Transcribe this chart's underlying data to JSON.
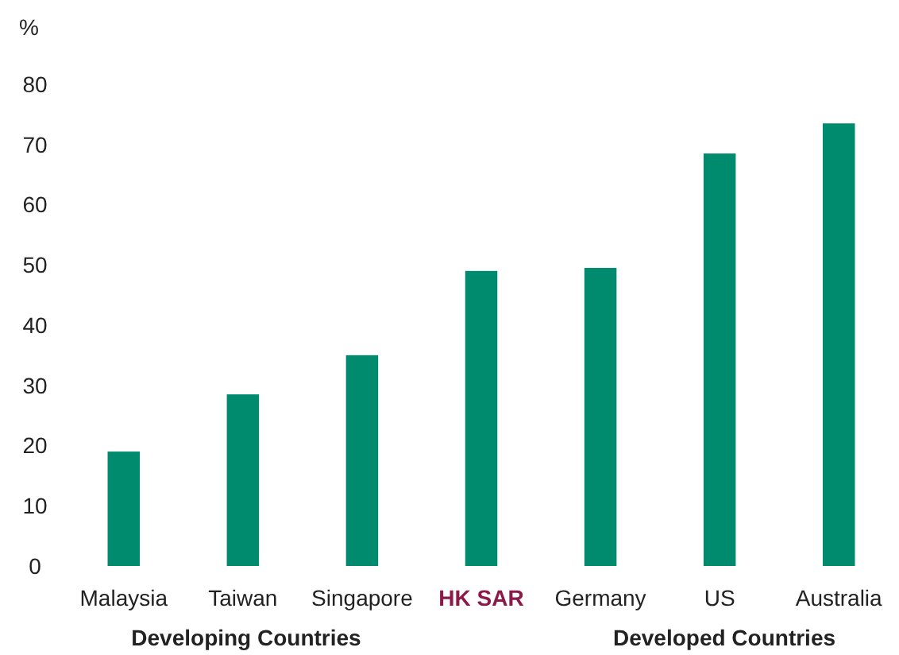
{
  "chart_data": {
    "type": "bar",
    "ylabel": "%",
    "categories": [
      "Malaysia",
      "Taiwan",
      "Singapore",
      "HK SAR",
      "Germany",
      "US",
      "Australia"
    ],
    "values": [
      19,
      28.5,
      35,
      49,
      49.5,
      68.5,
      73.5
    ],
    "color": "#008a6e",
    "ylim": [
      0,
      80
    ],
    "yticks": [
      0,
      10,
      20,
      30,
      40,
      50,
      60,
      70,
      80
    ],
    "grid": false,
    "annotations": [
      "Developing Countries",
      "Developed Countries"
    ]
  }
}
